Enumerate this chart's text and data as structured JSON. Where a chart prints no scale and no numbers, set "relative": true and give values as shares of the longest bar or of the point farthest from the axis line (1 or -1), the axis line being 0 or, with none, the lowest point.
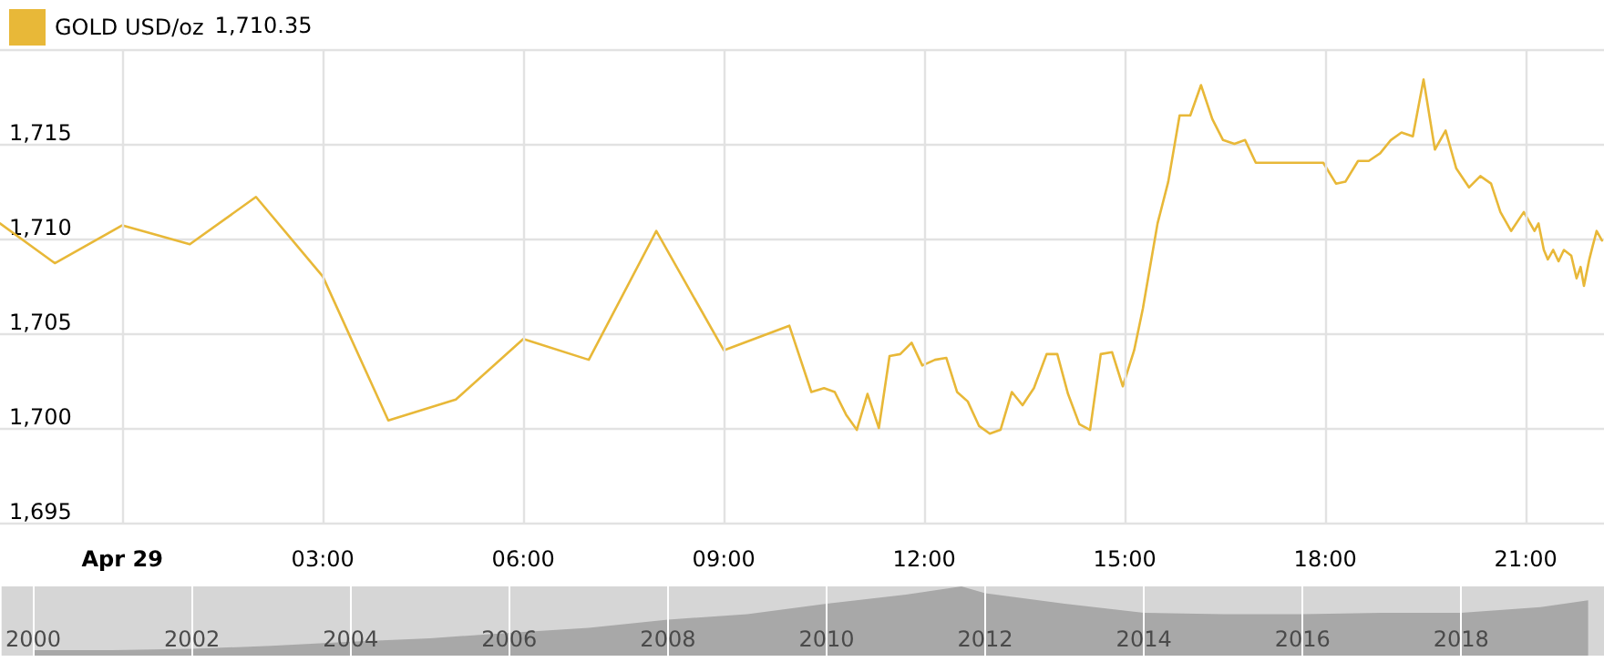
{
  "chart_data": [
    {
      "type": "line",
      "series": [
        {
          "name": "GOLD USD/oz",
          "color": "#e8b838",
          "x": [
            -1.83,
            -1.01,
            0,
            1.01,
            2.0,
            3.0,
            3.98,
            4.99,
            6.0,
            6.98,
            7.99,
            9.0,
            9.98,
            10.31,
            10.5,
            10.66,
            10.83,
            10.99,
            11.15,
            11.32,
            11.48,
            11.64,
            11.81,
            11.97,
            12.16,
            12.33,
            12.49,
            12.65,
            12.82,
            12.98,
            13.14,
            13.31,
            13.47,
            13.64,
            13.83,
            13.99,
            14.15,
            14.32,
            14.48,
            14.64,
            14.81,
            14.97,
            15.14,
            15.27,
            15.49,
            15.65,
            15.82,
            15.98,
            16.14,
            16.31,
            16.47,
            16.64,
            16.8,
            16.96,
            17.97,
            18.16,
            18.3,
            18.49,
            18.65,
            18.82,
            18.98,
            19.14,
            19.31,
            19.47,
            19.64,
            19.8,
            19.96,
            20.15,
            20.32,
            20.48,
            20.62,
            20.78,
            20.97,
            21.13,
            21.19,
            21.27,
            21.33,
            21.41,
            21.49,
            21.57,
            21.68,
            21.76,
            21.82,
            21.87,
            21.95,
            22.0,
            22.06,
            22.14
          ],
          "values": [
            1710.8,
            1708.7,
            1710.7,
            1709.7,
            1712.2,
            1708.0,
            1700.4,
            1701.5,
            1704.7,
            1703.6,
            1710.4,
            1704.1,
            1705.4,
            1701.9,
            1702.1,
            1701.9,
            1700.7,
            1699.9,
            1701.8,
            1700.0,
            1703.8,
            1703.9,
            1704.5,
            1703.3,
            1703.6,
            1703.7,
            1701.9,
            1701.4,
            1700.1,
            1699.7,
            1699.9,
            1701.9,
            1701.2,
            1702.1,
            1703.9,
            1703.9,
            1701.8,
            1700.2,
            1699.9,
            1703.9,
            1704.0,
            1702.2,
            1704.1,
            1706.3,
            1710.8,
            1713.0,
            1716.5,
            1716.5,
            1718.1,
            1716.3,
            1715.2,
            1715.0,
            1715.2,
            1714.0,
            1714.0,
            1712.9,
            1713.0,
            1714.1,
            1714.1,
            1714.5,
            1715.2,
            1715.6,
            1715.4,
            1718.4,
            1714.7,
            1715.7,
            1713.7,
            1712.7,
            1713.3,
            1712.9,
            1711.4,
            1710.4,
            1711.4,
            1710.4,
            1710.8,
            1709.4,
            1708.9,
            1709.4,
            1708.8,
            1709.4,
            1709.1,
            1707.9,
            1708.5,
            1707.5,
            1708.9,
            1709.6,
            1710.4,
            1709.9
          ]
        }
      ],
      "annotations": [
        "1,710.35"
      ],
      "xlim": [
        -1.83,
        22.17
      ],
      "xticks": [
        {
          "value": 0,
          "label": "Apr 29"
        },
        {
          "value": 3,
          "label": "03:00"
        },
        {
          "value": 6,
          "label": "06:00"
        },
        {
          "value": 9,
          "label": "09:00"
        },
        {
          "value": 12,
          "label": "12:00"
        },
        {
          "value": 15,
          "label": "15:00"
        },
        {
          "value": 18,
          "label": "18:00"
        },
        {
          "value": 21,
          "label": "21:00"
        }
      ],
      "ylim": [
        1695,
        1720
      ],
      "yticks": [
        {
          "value": 1695,
          "label": "1,695"
        },
        {
          "value": 1700,
          "label": "1,700"
        },
        {
          "value": 1705,
          "label": "1,705"
        },
        {
          "value": 1710,
          "label": "1,710"
        },
        {
          "value": 1715,
          "label": "1,715"
        },
        {
          "value": 1720,
          "label": null
        }
      ],
      "grid": true,
      "legend": "top left",
      "marker": "none",
      "line_style": "solid"
    },
    {
      "type": "area",
      "relative": true,
      "series": [
        {
          "color": "#a8a8a8",
          "x": [
            2000,
            2001,
            2002,
            2003,
            2004,
            2005,
            2006,
            2007,
            2008,
            2009,
            2010,
            2011,
            2011.7,
            2012,
            2013,
            2014,
            2015,
            2016,
            2017,
            2018,
            2019,
            2019.6
          ],
          "values": [
            0.08,
            0.08,
            0.1,
            0.14,
            0.2,
            0.25,
            0.33,
            0.4,
            0.52,
            0.6,
            0.75,
            0.88,
            1,
            0.9,
            0.75,
            0.62,
            0.6,
            0.6,
            0.62,
            0.62,
            0.7,
            0.8
          ]
        }
      ],
      "xlim": [
        1999.6,
        2019.8
      ],
      "xticks": [
        2000,
        2002,
        2004,
        2006,
        2008,
        2010,
        2012,
        2014,
        2016,
        2018
      ],
      "grid": "x",
      "tick_labels": "x"
    }
  ]
}
